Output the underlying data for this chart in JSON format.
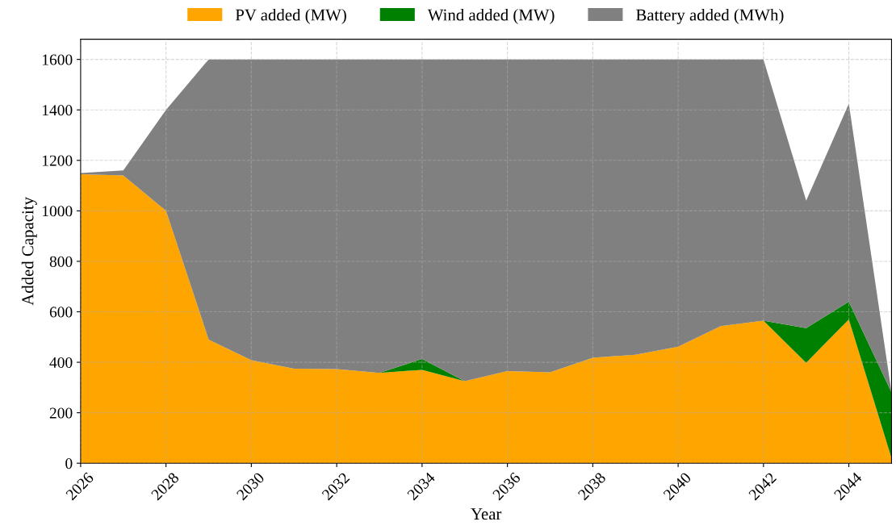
{
  "chart_data": {
    "type": "area",
    "stacked": true,
    "xlabel": "Year",
    "ylabel": "Added Capacity",
    "x": [
      2026,
      2027,
      2028,
      2029,
      2030,
      2031,
      2032,
      2033,
      2034,
      2035,
      2036,
      2037,
      2038,
      2039,
      2040,
      2041,
      2042,
      2043,
      2044,
      2045
    ],
    "series": [
      {
        "name": "PV added (MW)",
        "color": "#ffa500",
        "values": [
          1145,
          1140,
          1000,
          490,
          408,
          375,
          373,
          358,
          370,
          325,
          365,
          360,
          418,
          430,
          462,
          543,
          565,
          398,
          570,
          20
        ]
      },
      {
        "name": "Wind added (MW)",
        "color": "#008000",
        "values": [
          0,
          0,
          0,
          0,
          0,
          0,
          0,
          0,
          43,
          0,
          0,
          0,
          0,
          0,
          0,
          0,
          0,
          137,
          70,
          260
        ]
      },
      {
        "name": "Battery added (MWh)",
        "color": "#808080",
        "values": [
          5,
          20,
          400,
          1110,
          1192,
          1225,
          1227,
          1242,
          1187,
          1275,
          1235,
          1240,
          1182,
          1170,
          1138,
          1057,
          1035,
          505,
          785,
          0
        ]
      }
    ],
    "xlim": [
      2026,
      2045
    ],
    "ylim": [
      0,
      1680
    ],
    "xticks": [
      2026,
      2028,
      2030,
      2032,
      2034,
      2036,
      2038,
      2040,
      2042,
      2044
    ],
    "yticks": [
      0,
      200,
      400,
      600,
      800,
      1000,
      1200,
      1400,
      1600
    ],
    "grid": true,
    "legend": "top"
  }
}
